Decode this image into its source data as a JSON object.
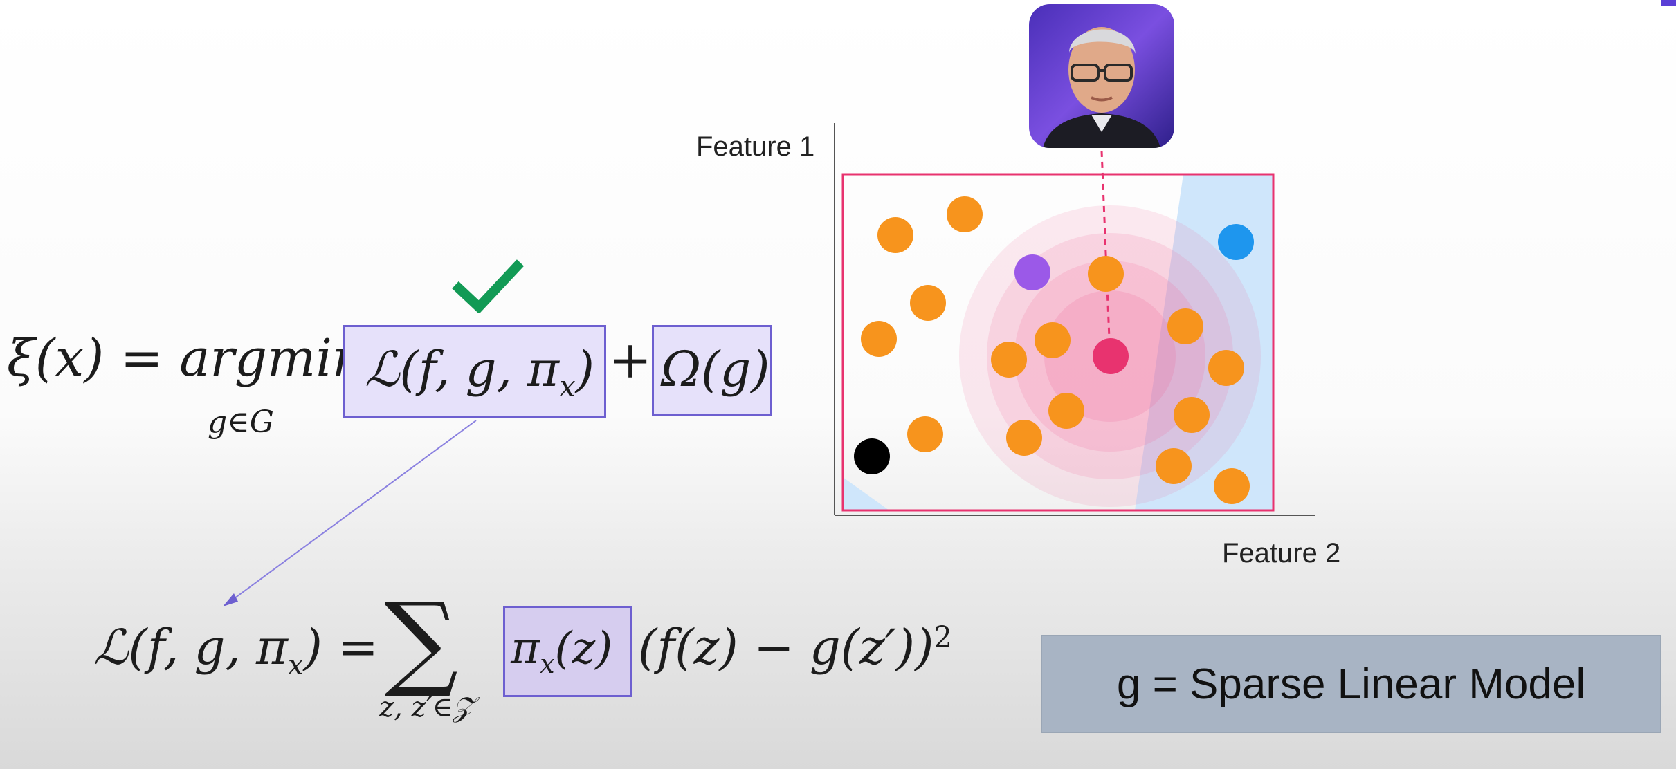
{
  "main_equation": {
    "lhs": "ξ(x) = argmin",
    "subscript": "g∈G",
    "loss_term": "ℒ(f, g, π",
    "loss_sub": "x",
    "loss_close": ")",
    "plus": "+",
    "reg_term": "Ω(g)"
  },
  "loss_equation": {
    "lhs": "ℒ(f, g, π",
    "lhs_sub": "x",
    "lhs_close": ") =",
    "sum_symbol": "∑",
    "sum_subscript": "z, z′∈𝒵",
    "weight_term": "π",
    "weight_sub": "x",
    "weight_close": "(z)",
    "residual": "(f(z) − g(z′))",
    "exponent": "2"
  },
  "plot": {
    "y_label": "Feature 1",
    "x_label": "Feature 2"
  },
  "model_box": {
    "text": "g = Sparse Linear Model"
  },
  "colors": {
    "accent_purple": "#6d5fd0",
    "box_fill": "#e6e1fa",
    "check_green": "#129a55",
    "highlight_pink": "#e8336f",
    "orange_point": "#f7941d",
    "blue_point": "#1e96ee",
    "violet_point": "#9b59e8",
    "black_point": "#000000",
    "model_box_fill": "#a8b4c4"
  },
  "icons": {
    "check": "check-icon",
    "photo": "person-photo"
  }
}
